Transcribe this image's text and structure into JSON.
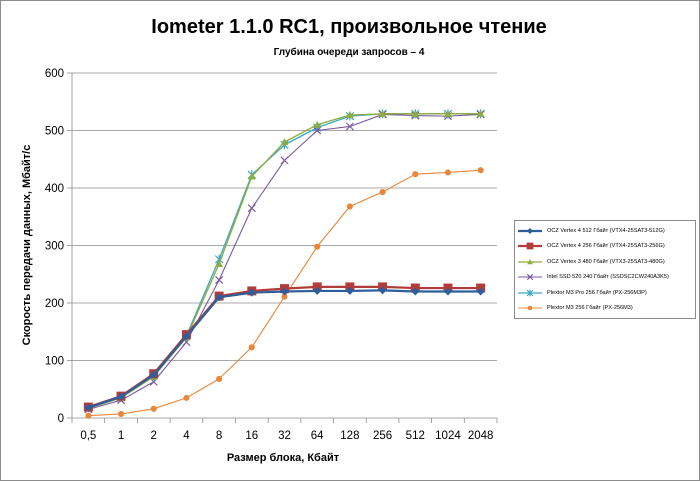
{
  "chart_data": {
    "type": "line",
    "title": "Iometer 1.1.0 RC1, произвольное чтение",
    "subtitle": "Глубина очереди запросов – 4",
    "xlabel": "Размер блока, Кбайт",
    "ylabel": "Скорость передачи данных, Мбайт/с",
    "ylim": [
      0,
      600
    ],
    "yticks": [
      0,
      100,
      200,
      300,
      400,
      500,
      600
    ],
    "grid": true,
    "legend_position": "right",
    "categories": [
      "0,5",
      "1",
      "2",
      "4",
      "8",
      "16",
      "32",
      "64",
      "128",
      "256",
      "512",
      "1024",
      "2048"
    ],
    "series": [
      {
        "name": "OCZ Vertex 4 512 Гбайт (VTX4-25SAT3-512G)",
        "color": "#2e5f9a",
        "marker": "diamond",
        "values": [
          18,
          37,
          75,
          142,
          210,
          218,
          220,
          221,
          221,
          222,
          220,
          220,
          220
        ]
      },
      {
        "name": "OCZ Vertex 4 256 Гбайт (VTX4-25SAT3-256G)",
        "color": "#b23c3a",
        "marker": "square",
        "values": [
          19,
          38,
          77,
          145,
          212,
          221,
          225,
          228,
          228,
          228,
          226,
          226,
          226
        ]
      },
      {
        "name": "OCZ Vertex 3 480 Гбайт (VTX3-25SAT3-480G)",
        "color": "#8fad3c",
        "marker": "triangle",
        "values": [
          17,
          35,
          72,
          140,
          268,
          420,
          480,
          510,
          527,
          529,
          529,
          529,
          529
        ]
      },
      {
        "name": "Intel SSD 520 240 Гбайт (SSDSC2CW240A3K5)",
        "color": "#7a5a9e",
        "marker": "x",
        "values": [
          15,
          31,
          63,
          132,
          240,
          365,
          448,
          500,
          507,
          528,
          526,
          525,
          528
        ]
      },
      {
        "name": "Plextor M3 Pro 256 Гбайт (PX-256M3P)",
        "color": "#3fa8c4",
        "marker": "star",
        "values": [
          18,
          36,
          74,
          143,
          276,
          423,
          475,
          505,
          525,
          529,
          529,
          529,
          529
        ]
      },
      {
        "name": "Plextor M3 256 Гбайт (PX-256M3)",
        "color": "#e8873a",
        "marker": "circle",
        "values": [
          4,
          7,
          16,
          35,
          68,
          123,
          211,
          298,
          368,
          393,
          424,
          427,
          431
        ]
      }
    ]
  }
}
